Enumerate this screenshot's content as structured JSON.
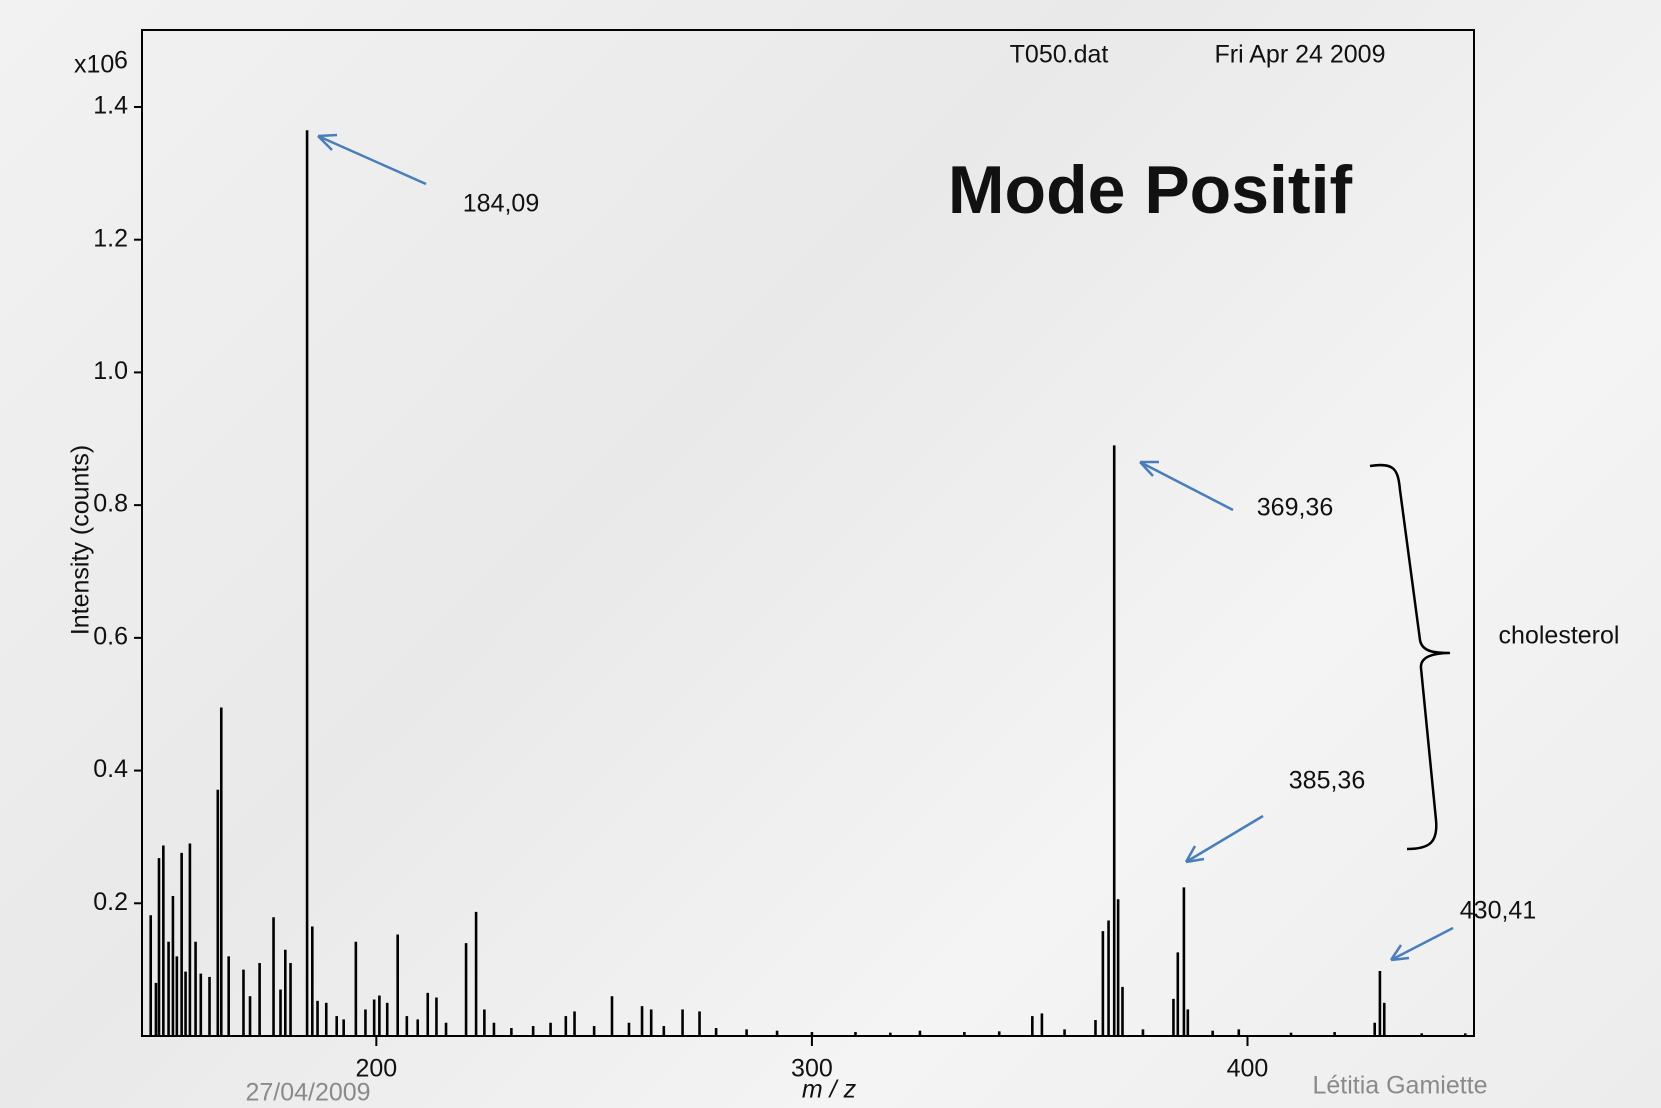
{
  "chart_data": {
    "type": "stem",
    "title": "Mode Positif",
    "header": [
      "T050.dat",
      "Fri Apr 24 2009"
    ],
    "x_label": "m / z",
    "y_label": "Intensity (counts)",
    "y_scale_label": "x10",
    "y_scale_exponent": "6",
    "color": "#000000",
    "x": [
      148.2,
      149.4,
      150.1,
      151.1,
      152.3,
      153.3,
      154.2,
      155.3,
      156.2,
      157.2,
      158.5,
      159.7,
      161.7,
      163.6,
      164.4,
      166.1,
      169.5,
      171.0,
      173.2,
      176.4,
      178.0,
      179.1,
      180.3,
      184.1,
      185.3,
      186.5,
      188.5,
      190.9,
      192.5,
      195.3,
      197.5,
      199.5,
      200.7,
      202.5,
      204.9,
      207.0,
      209.5,
      211.8,
      213.8,
      216.0,
      220.6,
      222.9,
      224.8,
      227.0,
      231.0,
      236.0,
      240.0,
      243.5,
      245.5,
      250.0,
      254.1,
      258.0,
      261.0,
      263.1,
      266.0,
      270.3,
      274.2,
      278.0,
      285.0,
      292.0,
      300.0,
      310.0,
      318.0,
      324.8,
      335.0,
      343.0,
      350.6,
      352.8,
      358.0,
      365.1,
      366.8,
      368.1,
      369.4,
      370.3,
      371.3,
      376.0,
      383.0,
      384.0,
      385.4,
      386.3,
      392.0,
      398.0,
      410.0,
      420.0,
      429.2,
      430.4,
      431.4,
      440.0,
      450.0
    ],
    "values": [
      0.182,
      0.08,
      0.268,
      0.287,
      0.142,
      0.211,
      0.12,
      0.276,
      0.097,
      0.29,
      0.142,
      0.094,
      0.089,
      0.371,
      0.495,
      0.12,
      0.1,
      0.06,
      0.11,
      0.179,
      0.07,
      0.13,
      0.11,
      1.365,
      0.165,
      0.053,
      0.05,
      0.03,
      0.025,
      0.142,
      0.04,
      0.055,
      0.061,
      0.05,
      0.153,
      0.03,
      0.025,
      0.065,
      0.058,
      0.02,
      0.14,
      0.187,
      0.04,
      0.02,
      0.012,
      0.015,
      0.02,
      0.03,
      0.037,
      0.015,
      0.06,
      0.02,
      0.045,
      0.04,
      0.015,
      0.04,
      0.037,
      0.012,
      0.01,
      0.008,
      0.006,
      0.006,
      0.005,
      0.008,
      0.006,
      0.007,
      0.03,
      0.034,
      0.01,
      0.024,
      0.158,
      0.174,
      0.89,
      0.206,
      0.074,
      0.01,
      0.056,
      0.126,
      0.224,
      0.04,
      0.008,
      0.01,
      0.005,
      0.006,
      0.02,
      0.098,
      0.05,
      0.004,
      0.004
    ],
    "xlim": [
      146.2,
      452
    ],
    "ylim": [
      0,
      1.516
    ],
    "xticks": [
      200,
      300,
      400
    ],
    "yticks": [
      0.2,
      0.4,
      0.6,
      0.8,
      {
        "value": 1,
        "label": "1.0"
      },
      1.2,
      1.4
    ],
    "annotations": [
      "184,09",
      "369,36",
      "385,36",
      "430,41",
      "cholesterol"
    ]
  },
  "footer": {
    "date": "27/04/2009",
    "author": "Létitia Gamiette"
  }
}
